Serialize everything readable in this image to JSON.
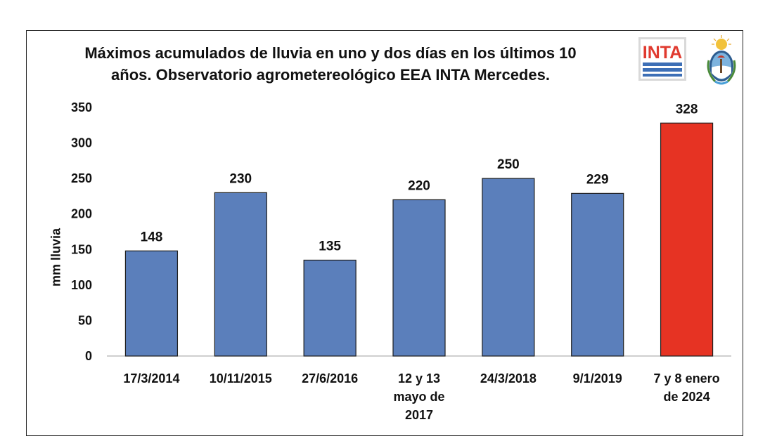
{
  "chart_data": {
    "type": "bar",
    "title_lines": [
      "Máximos acumulados de lluvia en uno y dos días en los últimos 10",
      "años. Observatorio agrometereológico EEA INTA Mercedes."
    ],
    "xlabel": "",
    "ylabel": "mm lluvia",
    "ylim": [
      0,
      350
    ],
    "yticks": [
      0,
      50,
      100,
      150,
      200,
      250,
      300,
      350
    ],
    "categories": [
      [
        "17/3/2014"
      ],
      [
        "10/11/2015"
      ],
      [
        "27/6/2016"
      ],
      [
        "12 y 13",
        "mayo de",
        "2017"
      ],
      [
        "24/3/2018"
      ],
      [
        "9/1/2019"
      ],
      [
        "7 y 8 enero",
        "de 2024"
      ]
    ],
    "values": [
      148,
      230,
      135,
      220,
      250,
      229,
      328
    ],
    "colors": [
      "#5b7fbb",
      "#5b7fbb",
      "#5b7fbb",
      "#5b7fbb",
      "#5b7fbb",
      "#5b7fbb",
      "#e63323"
    ],
    "grid": false,
    "legend": "none"
  },
  "logos": {
    "inta_text": "INTA",
    "inta_icon": "inta-logo",
    "seal_icon": "argentina-coat-of-arms-icon"
  }
}
